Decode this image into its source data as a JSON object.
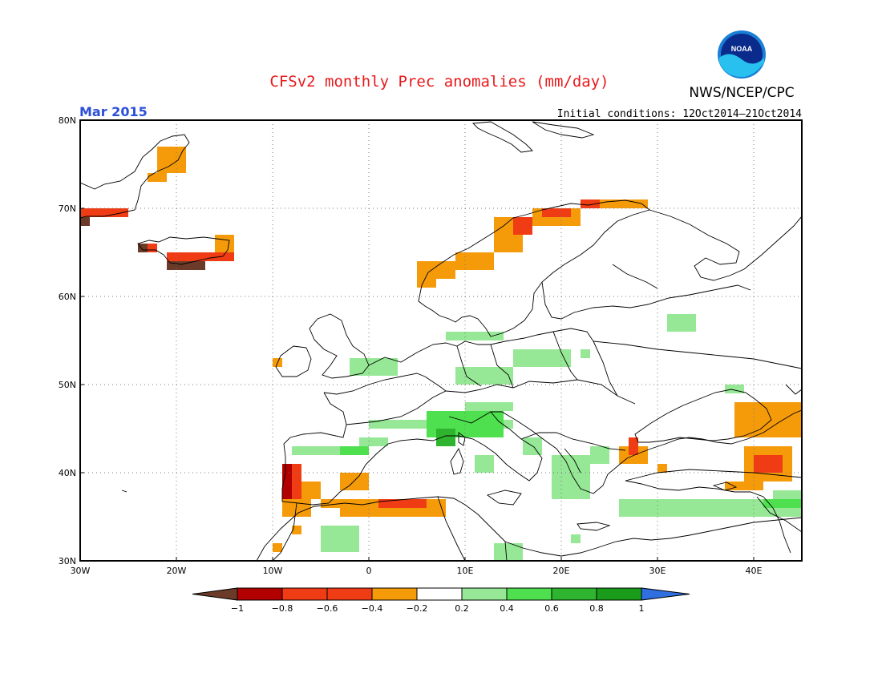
{
  "title": "CFSv2 monthly Prec anomalies (mm/day)",
  "month": "Mar 2015",
  "initial_conditions": "Initial conditions: 12Oct2014–21Oct2014",
  "agency": "NWS/NCEP/CPC",
  "logo_text": "NOAA",
  "map": {
    "lon_range": [
      -30,
      45
    ],
    "lat_range": [
      30,
      80
    ],
    "lat_labels": [
      "80N",
      "70N",
      "60N",
      "50N",
      "40N",
      "30N"
    ],
    "lon_labels": [
      "30W",
      "20W",
      "10W",
      "0",
      "10E",
      "20E",
      "30E",
      "40E"
    ],
    "gridlines": "dotted every 10 degrees"
  },
  "colorbar": {
    "labels": [
      "−1",
      "−0.8",
      "−0.6",
      "−0.4",
      "−0.2",
      "0.2",
      "0.4",
      "0.6",
      "0.8",
      "1"
    ],
    "colors": [
      "#6b3a28",
      "#b20000",
      "#f03c14",
      "#f59b0a",
      "#ffffff",
      "#96e896",
      "#4ee04e",
      "#2eb42e",
      "#1a9c1a",
      "#2f6fe0"
    ]
  },
  "anomaly_colors": {
    "dkbrown": "#6b3a28",
    "dkred": "#b20000",
    "red": "#f03c14",
    "orange": "#f59b0a",
    "ltgreen": "#96e896",
    "green": "#4ee04e",
    "dkgreen": "#2eb42e"
  },
  "anomaly_regions": [
    {
      "c": "orange",
      "lon": [
        -22,
        -19
      ],
      "lat": [
        74,
        77
      ]
    },
    {
      "c": "orange",
      "lon": [
        -23,
        -21
      ],
      "lat": [
        73,
        74
      ]
    },
    {
      "c": "red",
      "lon": [
        -30,
        -25
      ],
      "lat": [
        69,
        70
      ]
    },
    {
      "c": "dkbrown",
      "lon": [
        -30,
        -29
      ],
      "lat": [
        68,
        69
      ]
    },
    {
      "c": "red",
      "lon": [
        -24,
        -22
      ],
      "lat": [
        65,
        66
      ]
    },
    {
      "c": "dkbrown",
      "lon": [
        -24,
        -23
      ],
      "lat": [
        65,
        66
      ]
    },
    {
      "c": "orange",
      "lon": [
        -16,
        -14
      ],
      "lat": [
        65,
        67
      ]
    },
    {
      "c": "red",
      "lon": [
        -21,
        -14
      ],
      "lat": [
        64,
        65
      ]
    },
    {
      "c": "dkbrown",
      "lon": [
        -21,
        -17
      ],
      "lat": [
        63,
        64
      ]
    },
    {
      "c": "orange",
      "lon": [
        5,
        7
      ],
      "lat": [
        61,
        64
      ]
    },
    {
      "c": "orange",
      "lon": [
        7,
        9
      ],
      "lat": [
        62,
        64
      ]
    },
    {
      "c": "orange",
      "lon": [
        9,
        13
      ],
      "lat": [
        63,
        65
      ]
    },
    {
      "c": "orange",
      "lon": [
        13,
        16
      ],
      "lat": [
        65,
        69
      ]
    },
    {
      "c": "red",
      "lon": [
        15,
        17
      ],
      "lat": [
        67,
        69
      ]
    },
    {
      "c": "orange",
      "lon": [
        17,
        22
      ],
      "lat": [
        68,
        70
      ]
    },
    {
      "c": "red",
      "lon": [
        18,
        21
      ],
      "lat": [
        69,
        70
      ]
    },
    {
      "c": "red",
      "lon": [
        22,
        24
      ],
      "lat": [
        70,
        71
      ]
    },
    {
      "c": "orange",
      "lon": [
        24,
        29
      ],
      "lat": [
        70,
        71
      ]
    },
    {
      "c": "orange",
      "lon": [
        -10,
        -9
      ],
      "lat": [
        52,
        53
      ]
    },
    {
      "c": "ltgreen",
      "lon": [
        -2,
        3
      ],
      "lat": [
        51,
        53
      ]
    },
    {
      "c": "ltgreen",
      "lon": [
        8,
        14
      ],
      "lat": [
        55,
        56
      ]
    },
    {
      "c": "ltgreen",
      "lon": [
        15,
        21
      ],
      "lat": [
        52,
        54
      ]
    },
    {
      "c": "ltgreen",
      "lon": [
        22,
        23
      ],
      "lat": [
        53,
        54
      ]
    },
    {
      "c": "ltgreen",
      "lon": [
        31,
        34
      ],
      "lat": [
        56,
        58
      ]
    },
    {
      "c": "ltgreen",
      "lon": [
        9,
        15
      ],
      "lat": [
        50,
        52
      ]
    },
    {
      "c": "ltgreen",
      "lon": [
        37,
        39
      ],
      "lat": [
        49,
        50
      ]
    },
    {
      "c": "ltgreen",
      "lon": [
        10,
        15
      ],
      "lat": [
        47,
        48
      ]
    },
    {
      "c": "ltgreen",
      "lon": [
        0,
        15
      ],
      "lat": [
        45,
        46
      ]
    },
    {
      "c": "green",
      "lon": [
        6,
        14
      ],
      "lat": [
        44,
        47
      ]
    },
    {
      "c": "dkgreen",
      "lon": [
        7,
        9
      ],
      "lat": [
        43,
        45
      ]
    },
    {
      "c": "ltgreen",
      "lon": [
        -8,
        -2
      ],
      "lat": [
        42,
        43
      ]
    },
    {
      "c": "green",
      "lon": [
        -3,
        0
      ],
      "lat": [
        42,
        43
      ]
    },
    {
      "c": "ltgreen",
      "lon": [
        -1,
        2
      ],
      "lat": [
        43,
        44
      ]
    },
    {
      "c": "ltgreen",
      "lon": [
        11,
        13
      ],
      "lat": [
        40,
        42
      ]
    },
    {
      "c": "ltgreen",
      "lon": [
        16,
        18
      ],
      "lat": [
        42,
        44
      ]
    },
    {
      "c": "ltgreen",
      "lon": [
        19,
        23
      ],
      "lat": [
        37,
        42
      ]
    },
    {
      "c": "ltgreen",
      "lon": [
        23,
        25
      ],
      "lat": [
        41,
        43
      ]
    },
    {
      "c": "ltgreen",
      "lon": [
        26,
        42
      ],
      "lat": [
        35,
        37
      ]
    },
    {
      "c": "ltgreen",
      "lon": [
        42,
        45
      ],
      "lat": [
        35,
        38
      ]
    },
    {
      "c": "green",
      "lon": [
        41,
        45
      ],
      "lat": [
        36,
        37
      ]
    },
    {
      "c": "ltgreen",
      "lon": [
        -5,
        -1
      ],
      "lat": [
        31,
        34
      ]
    },
    {
      "c": "ltgreen",
      "lon": [
        13,
        16
      ],
      "lat": [
        30,
        32
      ]
    },
    {
      "c": "ltgreen",
      "lon": [
        21,
        22
      ],
      "lat": [
        32,
        33
      ]
    },
    {
      "c": "red",
      "lon": [
        -9,
        -7
      ],
      "lat": [
        37,
        41
      ]
    },
    {
      "c": "dkred",
      "lon": [
        -9,
        -8
      ],
      "lat": [
        37,
        41
      ]
    },
    {
      "c": "orange",
      "lon": [
        -9,
        -6
      ],
      "lat": [
        35,
        37
      ]
    },
    {
      "c": "orange",
      "lon": [
        -7,
        -5
      ],
      "lat": [
        37,
        39
      ]
    },
    {
      "c": "orange",
      "lon": [
        -5,
        -2
      ],
      "lat": [
        36,
        37
      ]
    },
    {
      "c": "orange",
      "lon": [
        -3,
        0
      ],
      "lat": [
        38,
        40
      ]
    },
    {
      "c": "orange",
      "lon": [
        -3,
        8
      ],
      "lat": [
        35,
        37
      ]
    },
    {
      "c": "red",
      "lon": [
        1,
        6
      ],
      "lat": [
        36,
        37
      ]
    },
    {
      "c": "orange",
      "lon": [
        -8,
        -7
      ],
      "lat": [
        33,
        34
      ]
    },
    {
      "c": "orange",
      "lon": [
        -10,
        -9
      ],
      "lat": [
        31,
        32
      ]
    },
    {
      "c": "orange",
      "lon": [
        26,
        29
      ],
      "lat": [
        41,
        43
      ]
    },
    {
      "c": "red",
      "lon": [
        27,
        28
      ],
      "lat": [
        42,
        44
      ]
    },
    {
      "c": "orange",
      "lon": [
        30,
        31
      ],
      "lat": [
        40,
        41
      ]
    },
    {
      "c": "orange",
      "lon": [
        38,
        45
      ],
      "lat": [
        44,
        48
      ]
    },
    {
      "c": "orange",
      "lon": [
        37,
        41
      ],
      "lat": [
        38,
        39
      ]
    },
    {
      "c": "orange",
      "lon": [
        39,
        44
      ],
      "lat": [
        39,
        43
      ]
    },
    {
      "c": "red",
      "lon": [
        40,
        43
      ],
      "lat": [
        40,
        42
      ]
    }
  ]
}
